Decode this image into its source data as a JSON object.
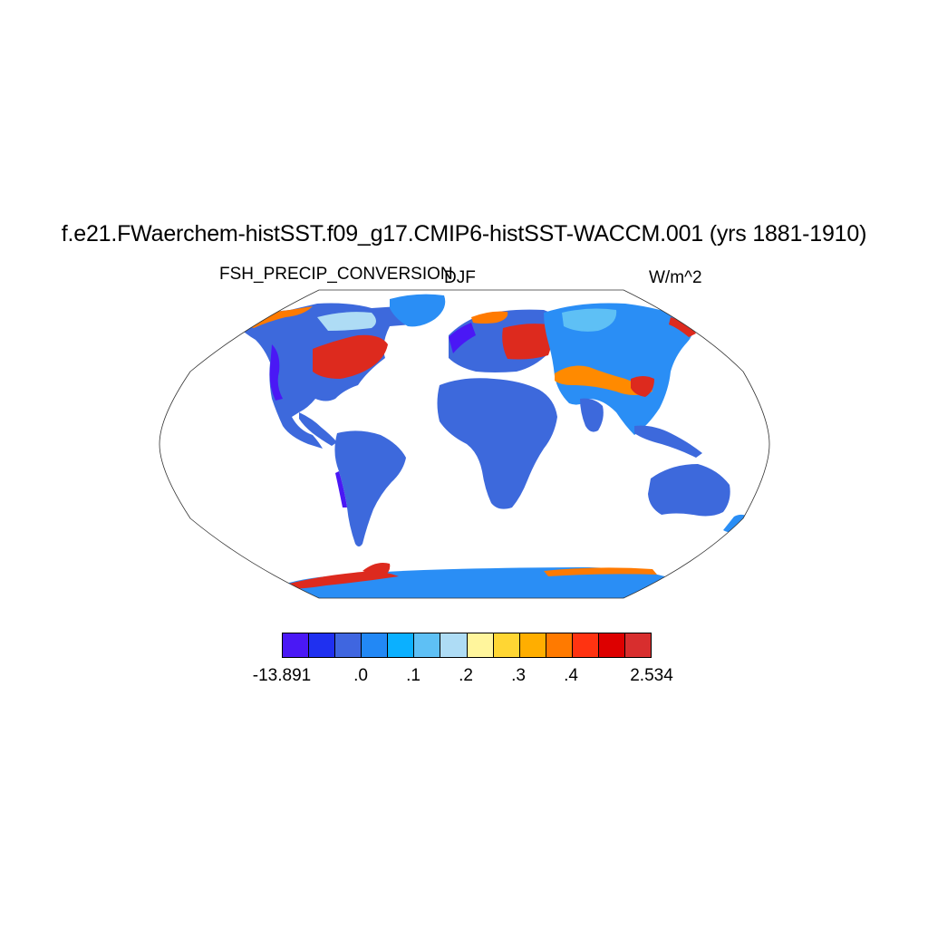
{
  "title": "f.e21.FWaerchem-histSST.f09_g17.CMIP6-histSST-WACCM.001 (yrs 1881-1910)",
  "variable": "FSH_PRECIP_CONVERSION",
  "season": "DJF",
  "units": "W/m^2",
  "projection": "Robinson (global)",
  "colorbar": {
    "colors": [
      "#4a18f5",
      "#1f30f0",
      "#3f66e0",
      "#2288f5",
      "#0bb0ff",
      "#5ec0f5",
      "#aedcf5",
      "#fff59c",
      "#ffd633",
      "#ffae00",
      "#ff7a00",
      "#ff3311",
      "#dd0000",
      "#d82e2e"
    ],
    "tick_labels": [
      "-13.891",
      ".0",
      ".1",
      ".2",
      ".3",
      ".4",
      "2.534"
    ]
  },
  "regions": {
    "ocean": "#ffffff",
    "land_default": "#3d69dc",
    "antarctica": "#2a8ef5",
    "warm_high": "#dd2a1e",
    "warm_mid": "#ff8a00",
    "cool_edge": "#4a18f5"
  }
}
